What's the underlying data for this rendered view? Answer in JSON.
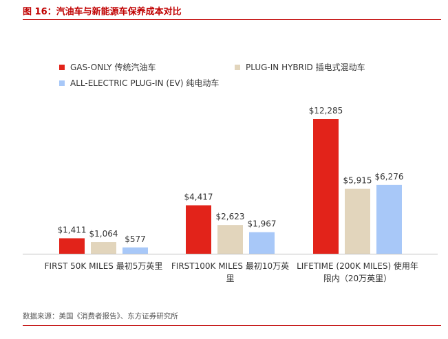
{
  "title": "图 16：汽油车与新能源车保养成本对比",
  "source": "数据来源：美国《消费者报告》、东方证券研究所",
  "colors": {
    "gas": "#e2231a",
    "hybrid": "#e2d5bc",
    "ev": "#a8c8f8",
    "accent": "#c00000"
  },
  "chart_data": {
    "type": "bar",
    "categories": [
      [
        "FIRST 50K MILES  最初5万英里"
      ],
      [
        "FIRST100K MILES 最初10万英",
        "里"
      ],
      [
        "LIFETIME (200K MILES) 使用年",
        "限内（20万英里）"
      ]
    ],
    "series": [
      {
        "name": "GAS-ONLY 传统汽油车",
        "values": [
          1411,
          4417,
          12285
        ],
        "labels": [
          "$1,411",
          "$4,417",
          "$12,285"
        ]
      },
      {
        "name": "PLUG-IN HYBRID 插电式混动车",
        "values": [
          1064,
          2623,
          5915
        ],
        "labels": [
          "$1,064",
          "$2,623",
          "$5,915"
        ]
      },
      {
        "name": "ALL-ELECTRIC PLUG-IN (EV) 纯电动车",
        "values": [
          577,
          1967,
          6276
        ],
        "labels": [
          "$577",
          "$1,967",
          "$6,276"
        ]
      }
    ],
    "ylim": [
      0,
      12285
    ],
    "legend_position": "top-left",
    "grid": false
  }
}
